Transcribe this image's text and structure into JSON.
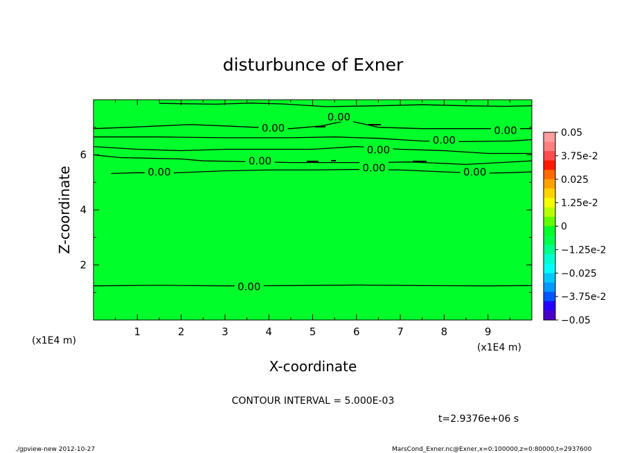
{
  "chart_data": {
    "type": "heatmap",
    "title": "disturbunce of Exner",
    "xlabel": "X-coordinate",
    "ylabel": "Z-coordinate",
    "x_unit": "(x1E4 m)",
    "y_unit": "(x1E4 m)",
    "xlim": [
      0,
      10
    ],
    "ylim": [
      0,
      8
    ],
    "x_ticks": [
      1,
      2,
      3,
      4,
      5,
      6,
      7,
      8,
      9
    ],
    "y_ticks": [
      2,
      4,
      6
    ],
    "field_color": "#00ff2a",
    "contour_interval": "CONTOUR INTERVAL = 5.000E-03",
    "contour_label": "0.00",
    "contour_labels": [
      {
        "x": 3.55,
        "z": 1.23,
        "text": "0.00"
      },
      {
        "x": 1.5,
        "z": 5.4,
        "text": "0.00"
      },
      {
        "x": 3.8,
        "z": 5.8,
        "text": "0.00"
      },
      {
        "x": 6.4,
        "z": 5.55,
        "text": "0.00"
      },
      {
        "x": 8.7,
        "z": 5.4,
        "text": "0.00"
      },
      {
        "x": 6.5,
        "z": 6.2,
        "text": "0.00"
      },
      {
        "x": 8.0,
        "z": 6.55,
        "text": "0.00"
      },
      {
        "x": 9.4,
        "z": 6.9,
        "text": "0.00"
      },
      {
        "x": 4.1,
        "z": 7.0,
        "text": "0.00"
      },
      {
        "x": 5.6,
        "z": 7.4,
        "text": "0.00"
      }
    ],
    "contours": [
      [
        [
          0.0,
          1.24
        ],
        [
          1.5,
          1.26
        ],
        [
          3.0,
          1.24
        ],
        [
          4.5,
          1.25
        ],
        [
          6.0,
          1.27
        ],
        [
          7.5,
          1.25
        ],
        [
          9.0,
          1.24
        ],
        [
          10.0,
          1.25
        ]
      ],
      [
        [
          0.0,
          6.95
        ],
        [
          0.8,
          7.0
        ],
        [
          1.5,
          7.05
        ],
        [
          2.2,
          7.1
        ],
        [
          3.0,
          7.05
        ],
        [
          3.7,
          7.0
        ],
        [
          4.5,
          6.95
        ],
        [
          5.2,
          7.05
        ],
        [
          5.8,
          7.25
        ],
        [
          6.5,
          7.0
        ],
        [
          7.5,
          6.95
        ],
        [
          8.5,
          6.95
        ],
        [
          9.2,
          6.95
        ],
        [
          10.0,
          6.95
        ]
      ],
      [
        [
          0.0,
          6.65
        ],
        [
          1.5,
          6.65
        ],
        [
          3.0,
          6.62
        ],
        [
          4.5,
          6.62
        ],
        [
          5.5,
          6.65
        ],
        [
          6.5,
          6.6
        ],
        [
          7.5,
          6.5
        ],
        [
          8.5,
          6.48
        ],
        [
          9.5,
          6.5
        ],
        [
          10.0,
          6.55
        ]
      ],
      [
        [
          0.0,
          6.3
        ],
        [
          1.0,
          6.2
        ],
        [
          2.0,
          6.15
        ],
        [
          3.0,
          6.2
        ],
        [
          4.0,
          6.2
        ],
        [
          5.0,
          6.2
        ],
        [
          6.0,
          6.3
        ],
        [
          7.0,
          6.2
        ],
        [
          8.0,
          6.15
        ],
        [
          9.0,
          6.05
        ],
        [
          10.0,
          6.05
        ]
      ],
      [
        [
          0.0,
          6.0
        ],
        [
          0.6,
          5.9
        ],
        [
          1.2,
          5.88
        ],
        [
          2.0,
          5.85
        ],
        [
          2.5,
          5.78
        ],
        [
          3.5,
          5.75
        ],
        [
          4.5,
          5.72
        ],
        [
          5.5,
          5.72
        ],
        [
          6.5,
          5.72
        ],
        [
          7.2,
          5.74
        ],
        [
          7.8,
          5.7
        ],
        [
          8.5,
          5.65
        ],
        [
          9.3,
          5.72
        ],
        [
          10.0,
          5.78
        ]
      ],
      [
        [
          0.4,
          5.32
        ],
        [
          1.0,
          5.35
        ],
        [
          1.8,
          5.34
        ],
        [
          2.4,
          5.38
        ],
        [
          3.0,
          5.42
        ],
        [
          4.0,
          5.45
        ],
        [
          5.0,
          5.45
        ],
        [
          6.0,
          5.47
        ],
        [
          7.0,
          5.45
        ],
        [
          8.0,
          5.38
        ],
        [
          8.8,
          5.33
        ],
        [
          9.5,
          5.35
        ],
        [
          10.0,
          5.38
        ]
      ],
      [
        [
          1.5,
          7.87
        ],
        [
          2.8,
          7.84
        ],
        [
          3.6,
          7.88
        ],
        [
          4.3,
          7.85
        ],
        [
          5.3,
          7.75
        ],
        [
          6.5,
          7.78
        ],
        [
          7.5,
          7.82
        ],
        [
          8.5,
          7.78
        ],
        [
          9.4,
          7.76
        ],
        [
          10.0,
          7.78
        ]
      ]
    ],
    "colorbar": {
      "labels": [
        "0.05",
        "3.75e-2",
        "0.025",
        "1.25e-2",
        "0",
        "−1.25e-2",
        "−0.025",
        "−3.75e-2",
        "−0.05"
      ],
      "colors": [
        "#ff9ea0",
        "#ff7f80",
        "#ff4d4d",
        "#ff1a00",
        "#ff6a00",
        "#ffa200",
        "#ffd400",
        "#f2ff00",
        "#b8ff00",
        "#62ff00",
        "#00ff2a",
        "#00ff4d",
        "#00ff90",
        "#00ffd0",
        "#00ffff",
        "#00c8ff",
        "#0098ff",
        "#0055ff",
        "#2600ff",
        "#4b00c8"
      ]
    }
  },
  "footer": {
    "time": "t=2.9376e+06 s",
    "left": "./gpview-new   2012-10-27",
    "right": "MarsCond_Exner.nc@Exner,x=0:100000,z=0:80000,t=2937600"
  }
}
